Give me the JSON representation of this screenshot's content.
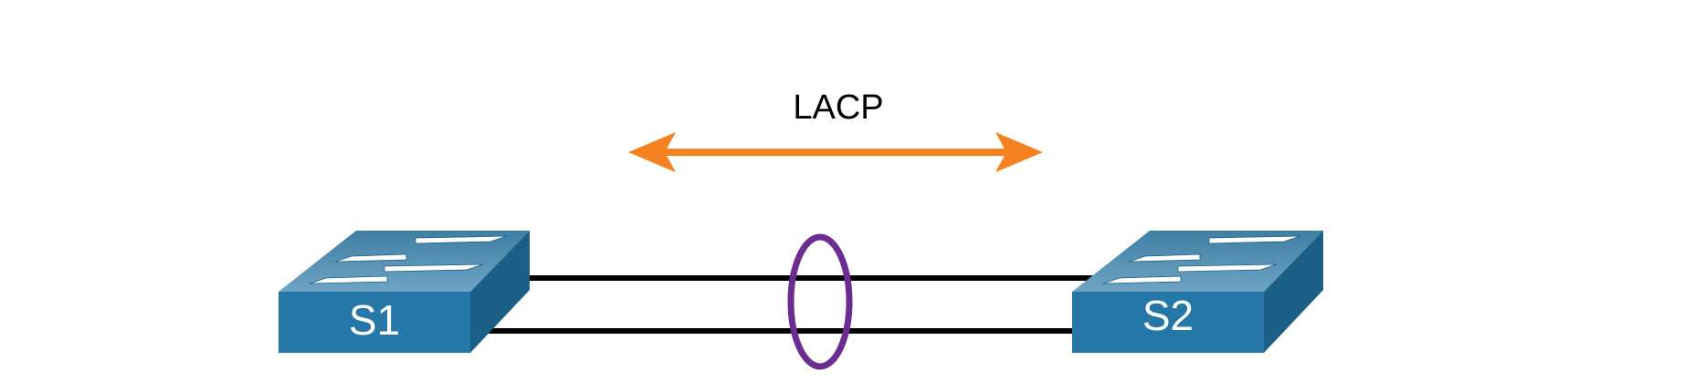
{
  "protocol": {
    "label": "LACP",
    "arrow_color": "#F58220",
    "direction": "bidirectional"
  },
  "switches": [
    {
      "id": "S1",
      "label": "S1",
      "icon": "workgroup-switch-icon"
    },
    {
      "id": "S2",
      "label": "S2",
      "icon": "workgroup-switch-icon"
    }
  ],
  "links": [
    {
      "from": "S1",
      "to": "S2",
      "color": "#000000"
    },
    {
      "from": "S1",
      "to": "S2",
      "color": "#000000"
    }
  ],
  "bundle": {
    "type": "etherchannel",
    "marker_color": "#6B2D8F"
  },
  "colors": {
    "switch_top": "#4E8DB0",
    "switch_front": "#2477A6",
    "switch_side": "#1C5F86",
    "arrow_glyph": "#ffffff"
  }
}
